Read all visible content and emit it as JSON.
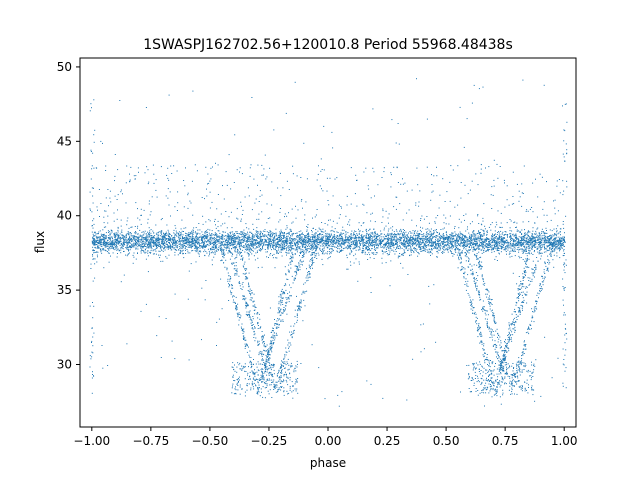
{
  "chart_data": {
    "type": "scatter",
    "title": "1SWASPJ162702.56+120010.8 Period 55968.48438s",
    "xlabel": "phase",
    "ylabel": "flux",
    "xlim": [
      -1.05,
      1.05
    ],
    "ylim": [
      25.8,
      50.6
    ],
    "xticks": [
      -1.0,
      -0.75,
      -0.5,
      -0.25,
      0.0,
      0.25,
      0.5,
      0.75,
      1.0
    ],
    "xtick_labels": [
      "−1.00",
      "−0.75",
      "−0.50",
      "−0.25",
      "0.00",
      "0.25",
      "0.50",
      "0.75",
      "1.00"
    ],
    "yticks": [
      30,
      35,
      40,
      45,
      50
    ],
    "ytick_labels": [
      "30",
      "35",
      "40",
      "45",
      "50"
    ],
    "grid": false,
    "point_color": "#1f77b4",
    "baseline_flux": 38.3,
    "baseline_scatter": 0.5,
    "eclipse_centers": [
      -0.27,
      0.73
    ],
    "eclipse_min_flux": 28.0,
    "eclipse_branches": [
      {
        "x0": -0.45,
        "x1": -0.3,
        "y0": 37.5,
        "y1": 28.5
      },
      {
        "x0": -0.42,
        "x1": -0.25,
        "y0": 37.8,
        "y1": 29.0
      },
      {
        "x0": -0.38,
        "x1": -0.22,
        "y0": 38.0,
        "y1": 28.3
      },
      {
        "x0": -0.1,
        "x1": -0.28,
        "y0": 37.8,
        "y1": 29.5
      },
      {
        "x0": -0.05,
        "x1": -0.22,
        "y0": 38.0,
        "y1": 28.5
      },
      {
        "x0": -0.15,
        "x1": -0.3,
        "y0": 37.5,
        "y1": 28.0
      },
      {
        "x0": 0.55,
        "x1": 0.7,
        "y0": 37.5,
        "y1": 28.5
      },
      {
        "x0": 0.58,
        "x1": 0.75,
        "y0": 37.8,
        "y1": 29.0
      },
      {
        "x0": 0.62,
        "x1": 0.78,
        "y0": 38.0,
        "y1": 28.3
      },
      {
        "x0": 0.9,
        "x1": 0.72,
        "y0": 37.8,
        "y1": 29.5
      },
      {
        "x0": 0.95,
        "x1": 0.78,
        "y0": 38.0,
        "y1": 28.5
      },
      {
        "x0": 0.85,
        "x1": 0.7,
        "y0": 37.5,
        "y1": 28.0
      }
    ],
    "outlier_band": [
      39.5,
      43.5
    ]
  }
}
